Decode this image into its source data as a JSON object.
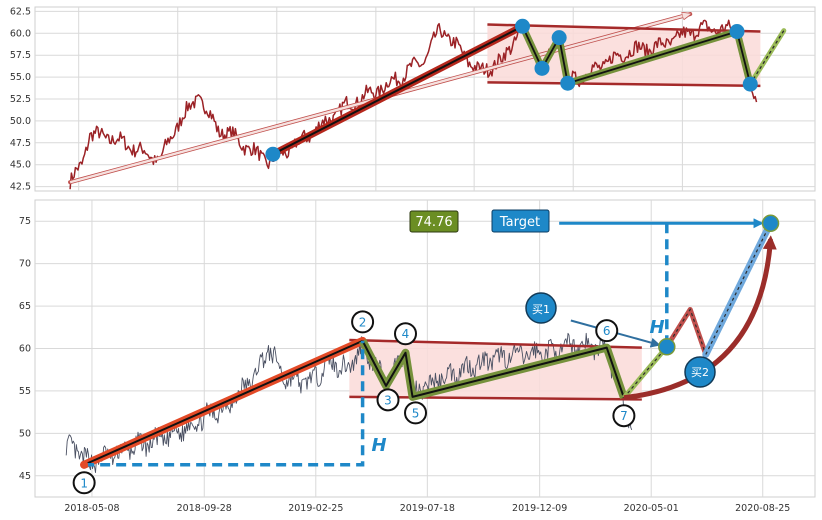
{
  "chart_data": [
    {
      "type": "line",
      "title": "",
      "ylim": [
        42.0,
        63.0
      ],
      "y_ticks": [
        "42.5",
        "45.0",
        "47.5",
        "50.0",
        "52.5",
        "55.0",
        "57.5",
        "60.0",
        "62.5"
      ],
      "grid": true,
      "colors": {
        "price": "#9b2226",
        "trend": "#b5271c",
        "channel_fill": "#fadbd8",
        "channel_line": "#a52a2a",
        "wedge_line": "#76923c",
        "point": "#1e88c8"
      },
      "trend_line": [
        {
          "x": 0.305,
          "y": 46.2
        },
        {
          "x": 0.625,
          "y": 60.8
        }
      ],
      "wedge_points": [
        {
          "x": 0.625,
          "y": 60.8
        },
        {
          "x": 0.65,
          "y": 56.0
        },
        {
          "x": 0.672,
          "y": 59.5
        },
        {
          "x": 0.683,
          "y": 54.3
        },
        {
          "x": 0.9,
          "y": 60.2
        },
        {
          "x": 0.917,
          "y": 54.2
        }
      ],
      "projection": [
        {
          "x": 0.917,
          "y": 54.2
        },
        {
          "x": 0.96,
          "y": 60.3
        }
      ]
    },
    {
      "type": "line",
      "title": "",
      "x_ticks": [
        "2018-05-08",
        "2018-09-28",
        "2019-02-25",
        "2019-07-18",
        "2019-12-09",
        "2020-05-01",
        "2020-08-25"
      ],
      "y_ticks": [
        "45",
        "50",
        "55",
        "60",
        "65",
        "70",
        "75"
      ],
      "ylim": [
        42.5,
        77.5
      ],
      "grid": true,
      "colors": {
        "price": "#4b5163",
        "trend": "#e34a27",
        "channel_fill": "#fadbd8",
        "channel_line": "#a52a2a",
        "wedge_line": "#76923c",
        "point": "#1e88c8",
        "target_line": "#1e88c8",
        "measure": "#1e88c8"
      },
      "points": [
        {
          "label": "1",
          "x": 0.063,
          "y": 46.3
        },
        {
          "label": "2",
          "x": 0.42,
          "y": 60.9
        },
        {
          "label": "3",
          "x": 0.45,
          "y": 55.6
        },
        {
          "label": "4",
          "x": 0.475,
          "y": 59.5
        },
        {
          "label": "5",
          "x": 0.484,
          "y": 54.3
        },
        {
          "label": "6",
          "x": 0.733,
          "y": 60.1
        },
        {
          "label": "7",
          "x": 0.755,
          "y": 54.2
        }
      ],
      "value_box": "74.76",
      "target_label": "Target",
      "target_value": 74.76,
      "buy_points": [
        {
          "label": "买1",
          "y": 60.2
        },
        {
          "label": "买2",
          "y": 57.2
        }
      ],
      "height_label": "H"
    }
  ]
}
